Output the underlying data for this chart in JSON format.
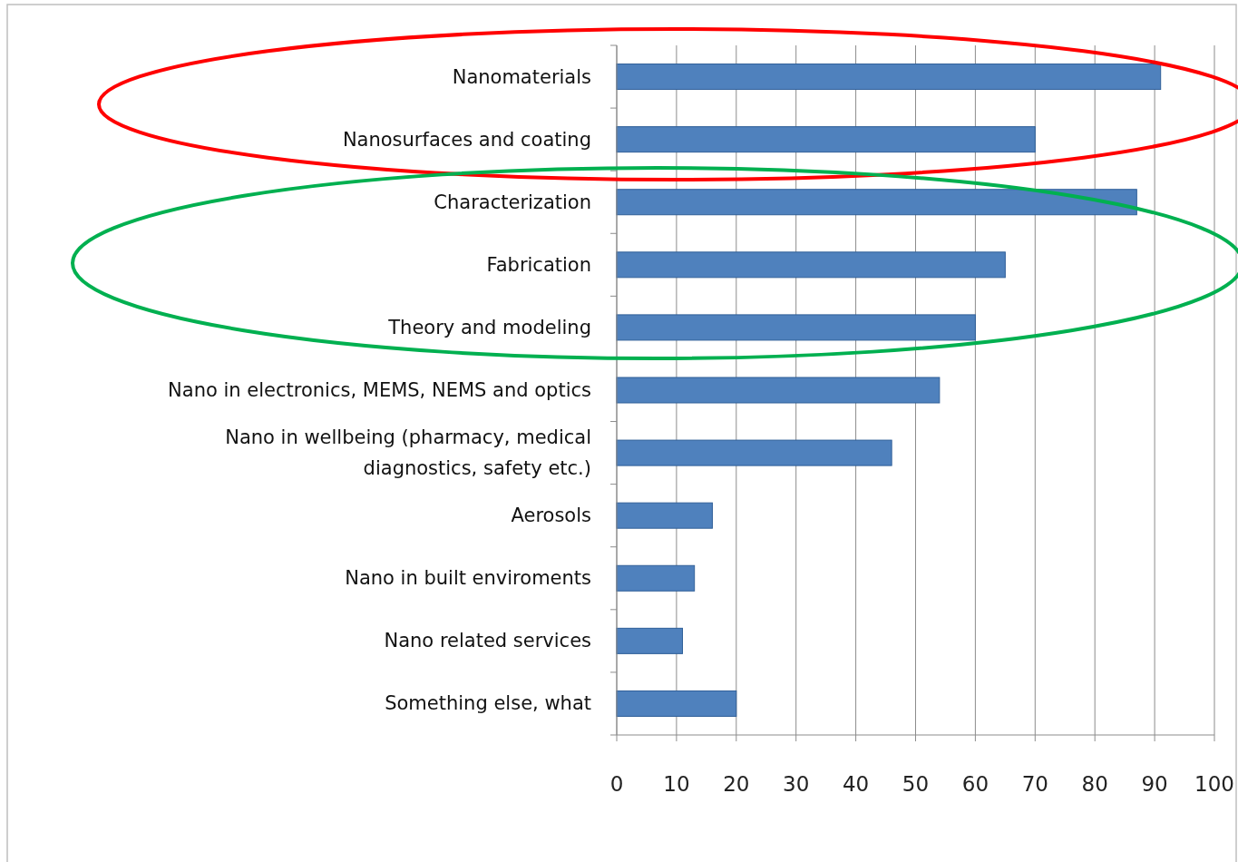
{
  "chart_data": {
    "type": "bar",
    "orientation": "horizontal",
    "categories": [
      "Nanomaterials",
      "Nanosurfaces and coating",
      "Characterization",
      "Fabrication",
      "Theory and modeling",
      "Nano in electronics, MEMS, NEMS and optics",
      "Nano in wellbeing (pharmacy, medical\ndiagnostics, safety etc.)",
      "Aerosols",
      "Nano in built enviroments",
      "Nano related services",
      "Something else, what"
    ],
    "values": [
      91,
      70,
      87,
      65,
      60,
      54,
      46,
      16,
      13,
      11,
      20
    ],
    "color": "#4f81bd",
    "xlim": [
      0,
      100
    ],
    "xticks": [
      0,
      10,
      20,
      30,
      40,
      50,
      60,
      70,
      80,
      90,
      100
    ],
    "grid": "x"
  }
}
